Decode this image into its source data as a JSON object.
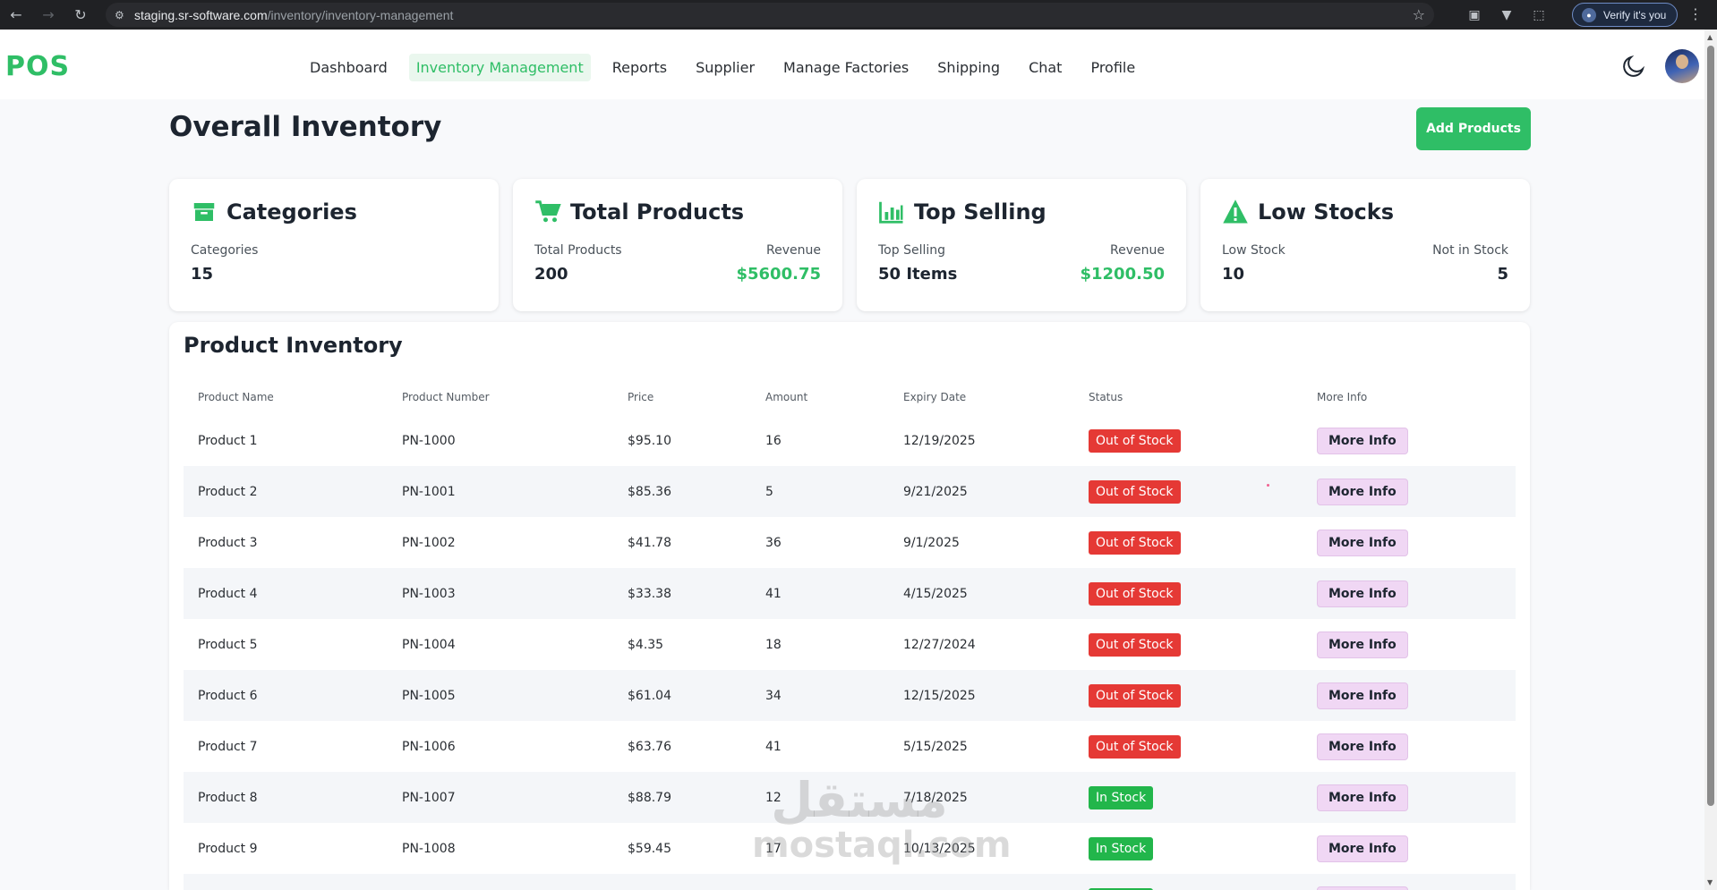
{
  "browser": {
    "url_host": "staging.sr-software.com",
    "url_path": "/inventory/inventory-management",
    "verify_label": "Verify it's you"
  },
  "app": {
    "logo": "POS",
    "nav": [
      {
        "label": "Dashboard",
        "active": false
      },
      {
        "label": "Inventory Management",
        "active": true
      },
      {
        "label": "Reports",
        "active": false
      },
      {
        "label": "Supplier",
        "active": false
      },
      {
        "label": "Manage Factories",
        "active": false
      },
      {
        "label": "Shipping",
        "active": false
      },
      {
        "label": "Chat",
        "active": false
      },
      {
        "label": "Profile",
        "active": false
      }
    ],
    "accent_color": "#2fbe66"
  },
  "page": {
    "title": "Overall Inventory",
    "add_button": "Add Products"
  },
  "cards": {
    "categories": {
      "title": "Categories",
      "left_label": "Categories",
      "left_value": "15"
    },
    "total_products": {
      "title": "Total Products",
      "left_label": "Total Products",
      "left_value": "200",
      "right_label": "Revenue",
      "right_value": "$5600.75"
    },
    "top_selling": {
      "title": "Top Selling",
      "left_label": "Top Selling",
      "left_value": "50 Items",
      "right_label": "Revenue",
      "right_value": "$1200.50"
    },
    "low_stocks": {
      "title": "Low Stocks",
      "left_label": "Low Stock",
      "left_value": "10",
      "right_label": "Not in Stock",
      "right_value": "5"
    }
  },
  "inventory": {
    "title": "Product Inventory",
    "columns": [
      "Product Name",
      "Product Number",
      "Price",
      "Amount",
      "Expiry Date",
      "Status",
      "More Info"
    ],
    "more_info_label": "More Info",
    "rows": [
      [
        "Product 1",
        "PN-1000",
        "$95.10",
        "16",
        "12/19/2025",
        "Out of Stock"
      ],
      [
        "Product 2",
        "PN-1001",
        "$85.36",
        "5",
        "9/21/2025",
        "Out of Stock"
      ],
      [
        "Product 3",
        "PN-1002",
        "$41.78",
        "36",
        "9/1/2025",
        "Out of Stock"
      ],
      [
        "Product 4",
        "PN-1003",
        "$33.38",
        "41",
        "4/15/2025",
        "Out of Stock"
      ],
      [
        "Product 5",
        "PN-1004",
        "$4.35",
        "18",
        "12/27/2024",
        "Out of Stock"
      ],
      [
        "Product 6",
        "PN-1005",
        "$61.04",
        "34",
        "12/15/2025",
        "Out of Stock"
      ],
      [
        "Product 7",
        "PN-1006",
        "$63.76",
        "41",
        "5/15/2025",
        "Out of Stock"
      ],
      [
        "Product 8",
        "PN-1007",
        "$88.79",
        "12",
        "7/18/2025",
        "In Stock"
      ],
      [
        "Product 9",
        "PN-1008",
        "$59.45",
        "17",
        "10/13/2025",
        "In Stock"
      ],
      [
        "",
        "",
        "",
        "",
        "",
        "In Stock"
      ]
    ]
  },
  "watermark": {
    "arabic": "مستقل",
    "latin": "mostaql.com"
  }
}
